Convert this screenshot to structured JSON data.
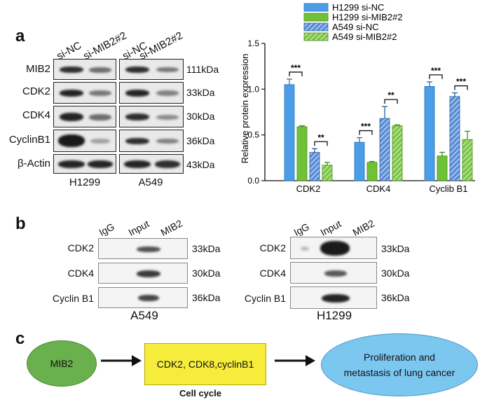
{
  "panel_a": {
    "letter": "a",
    "lanes": [
      "si-NC",
      "si-MIB2#2",
      "si-NC",
      "si-MIB2#2"
    ],
    "rows": [
      {
        "label": "MIB2",
        "kda": "111kDa"
      },
      {
        "label": "CDK2",
        "kda": "33kDa"
      },
      {
        "label": "CDK4",
        "kda": "30kDa"
      },
      {
        "label": "CyclinB1",
        "kda": "36kDa"
      },
      {
        "label": "β-Actin",
        "kda": "43kDa"
      }
    ],
    "cell_lines": [
      "H1299",
      "A549"
    ]
  },
  "chart_data": {
    "type": "bar",
    "categories": [
      "CDK2",
      "CDK4",
      "Cyclib B1"
    ],
    "ylabel": "Relative protein expression",
    "ylim": [
      0,
      1.5
    ],
    "yticks": [
      "0.0",
      "0.5",
      "1.0",
      "1.5"
    ],
    "legend_position": "top",
    "series": [
      {
        "name": "H1299 si-NC",
        "values": [
          1.05,
          0.42,
          1.03
        ],
        "errors": [
          0.06,
          0.05,
          0.05
        ],
        "color": "#4a9ee8",
        "pattern": "solid"
      },
      {
        "name": "H1299 si-MIB2#2",
        "values": [
          0.59,
          0.2,
          0.27
        ],
        "errors": [
          0.01,
          0.01,
          0.04
        ],
        "color": "#6fc236",
        "pattern": "solid"
      },
      {
        "name": "A549 si-NC",
        "values": [
          0.31,
          0.68,
          0.92
        ],
        "errors": [
          0.04,
          0.13,
          0.04
        ],
        "color": "#5a8fd6",
        "pattern": "hatched"
      },
      {
        "name": "A549 si-MIB2#2",
        "values": [
          0.17,
          0.6,
          0.45
        ],
        "errors": [
          0.03,
          0.01,
          0.09
        ],
        "color": "#7cc646",
        "pattern": "hatched"
      }
    ],
    "significance": [
      {
        "category": "CDK2",
        "pair": "H1299",
        "label": "***"
      },
      {
        "category": "CDK2",
        "pair": "A549",
        "label": "**"
      },
      {
        "category": "CDK4",
        "pair": "H1299",
        "label": "***"
      },
      {
        "category": "CDK4",
        "pair": "A549",
        "label": "**"
      },
      {
        "category": "Cyclib B1",
        "pair": "H1299",
        "label": "***"
      },
      {
        "category": "Cyclib B1",
        "pair": "A549",
        "label": "***"
      }
    ]
  },
  "panel_b": {
    "letter": "b",
    "left": {
      "lanes": [
        "IgG",
        "Input",
        "MIB2"
      ],
      "rows": [
        {
          "label": "CDK2",
          "kda": "33kDa"
        },
        {
          "label": "CDK4",
          "kda": "30kDa"
        },
        {
          "label": "Cyclin B1",
          "kda": "36kDa"
        }
      ],
      "cell_line": "A549"
    },
    "right": {
      "lanes": [
        "IgG",
        "Input",
        "MIB2"
      ],
      "rows": [
        {
          "label": "CDK2",
          "kda": "33kDa"
        },
        {
          "label": "CDK4",
          "kda": "30kDa"
        },
        {
          "label": "Cyclin B1",
          "kda": "36kDa"
        }
      ],
      "cell_line": "H1299"
    }
  },
  "panel_c": {
    "letter": "c",
    "node1": "MIB2",
    "node2": "CDK2, CDK8,cyclinB1",
    "node2_caption": "Cell cycle",
    "node3_line1": "Proliferation and",
    "node3_line2": "metastasis of lung cancer",
    "colors": {
      "node1": "#6ab04c",
      "node2": "#f5ec3c",
      "node3": "#7cc7f0"
    }
  }
}
